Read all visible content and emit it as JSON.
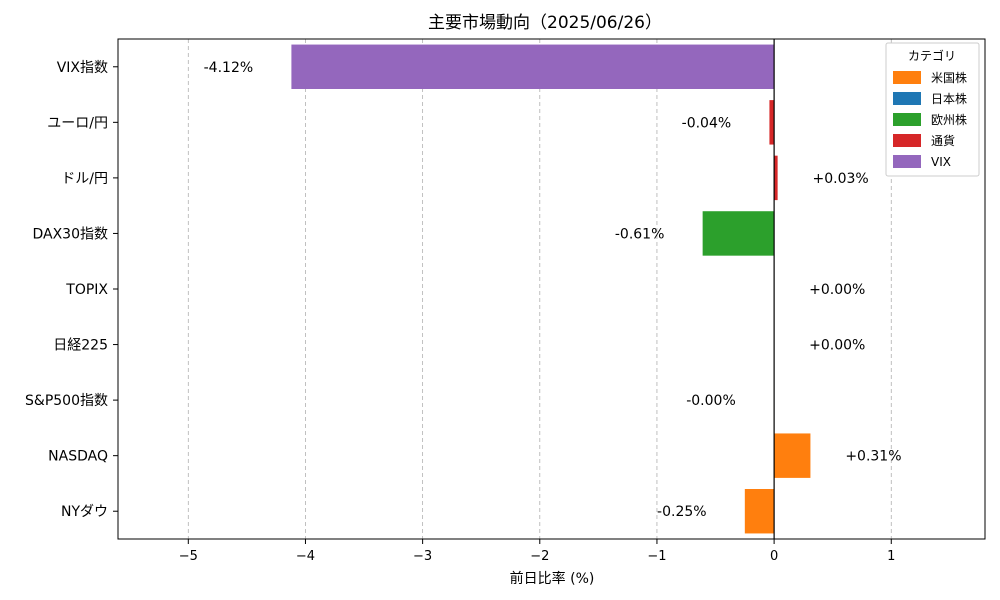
{
  "chart_data": {
    "type": "bar",
    "orientation": "horizontal",
    "title": "主要市場動向（2025/06/26）",
    "xlabel": "前日比率 (%)",
    "ylabel": "",
    "xlim": [
      -5.6,
      1.8
    ],
    "x_ticks": [
      -5,
      -4,
      -3,
      -2,
      -1,
      0,
      1
    ],
    "x_tick_labels": [
      "−5",
      "−4",
      "−3",
      "−2",
      "−1",
      "0",
      "1"
    ],
    "grid": "vertical dashed",
    "categories": [
      "NYダウ",
      "NASDAQ",
      "S&P500指数",
      "日経225",
      "TOPIX",
      "DAX30指数",
      "ドル/円",
      "ユーロ/円",
      "VIX指数"
    ],
    "values": [
      -0.25,
      0.31,
      -0.001,
      0.001,
      0.001,
      -0.61,
      0.03,
      -0.04,
      -4.12
    ],
    "value_labels": [
      "-0.25%",
      "+0.31%",
      "-0.00%",
      "+0.00%",
      "+0.00%",
      "-0.61%",
      "+0.03%",
      "-0.04%",
      "-4.12%"
    ],
    "category_group": [
      "米国株",
      "米国株",
      "米国株",
      "日本株",
      "日本株",
      "欧州株",
      "通貨",
      "通貨",
      "VIX"
    ],
    "legend": {
      "title": "カテゴリ",
      "position": "top-right",
      "entries": [
        {
          "label": "米国株",
          "color": "#ff7f0e"
        },
        {
          "label": "日本株",
          "color": "#1f77b4"
        },
        {
          "label": "欧州株",
          "color": "#2ca02c"
        },
        {
          "label": "通貨",
          "color": "#d62728"
        },
        {
          "label": "VIX",
          "color": "#9467bd"
        }
      ]
    }
  }
}
